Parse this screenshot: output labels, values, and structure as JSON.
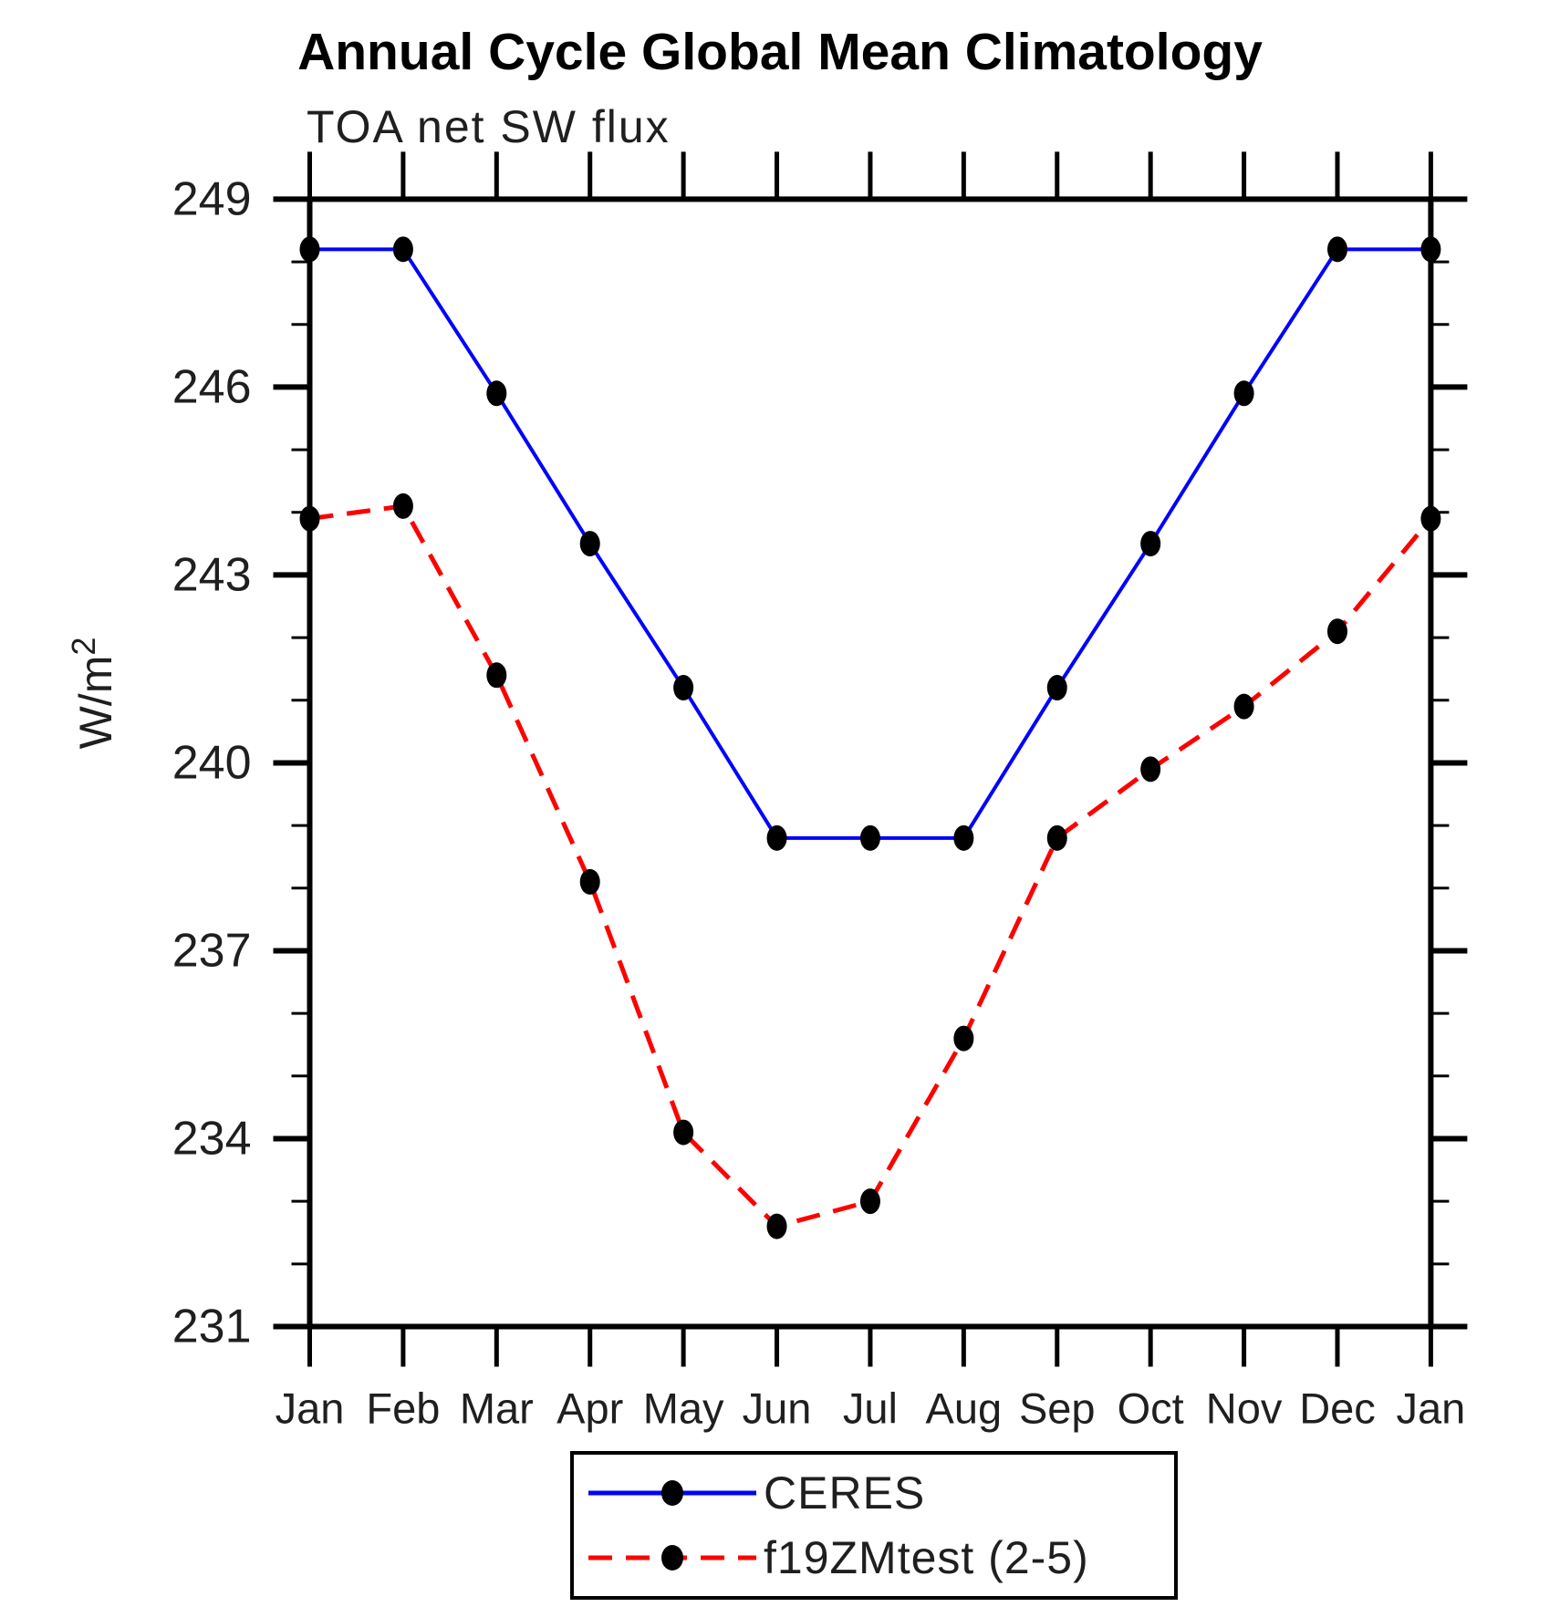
{
  "chart_data": {
    "type": "line",
    "title": "Annual Cycle Global Mean Climatology",
    "subtitle": "TOA net SW flux",
    "ylabel": "W/m²",
    "x_categories": [
      "Jan",
      "Feb",
      "Mar",
      "Apr",
      "May",
      "Jun",
      "Jul",
      "Aug",
      "Sep",
      "Oct",
      "Nov",
      "Dec",
      "Jan"
    ],
    "series": [
      {
        "name": "CERES",
        "color": "#0000ff",
        "line_style": "solid",
        "marker": "filled-black-circle",
        "values": [
          248.2,
          248.2,
          245.9,
          243.5,
          241.2,
          238.8,
          238.8,
          238.8,
          241.2,
          243.5,
          245.9,
          248.2,
          248.2
        ]
      },
      {
        "name": "f19ZMtest (2-5)",
        "color": "#ff0000",
        "line_style": "dashed",
        "marker": "filled-black-circle",
        "values": [
          243.9,
          244.1,
          241.4,
          238.1,
          234.1,
          232.6,
          233.0,
          235.6,
          238.8,
          239.9,
          240.9,
          242.1,
          243.9
        ]
      }
    ],
    "ylim": [
      231,
      249
    ],
    "y_major_ticks": [
      231,
      234,
      237,
      240,
      243,
      246,
      249
    ],
    "y_minor_tick_step": 1,
    "grid": false,
    "legend_position": "bottom-center",
    "axis_color": "#000000",
    "text_color": "#1f1f1f",
    "background": "#ffffff"
  }
}
